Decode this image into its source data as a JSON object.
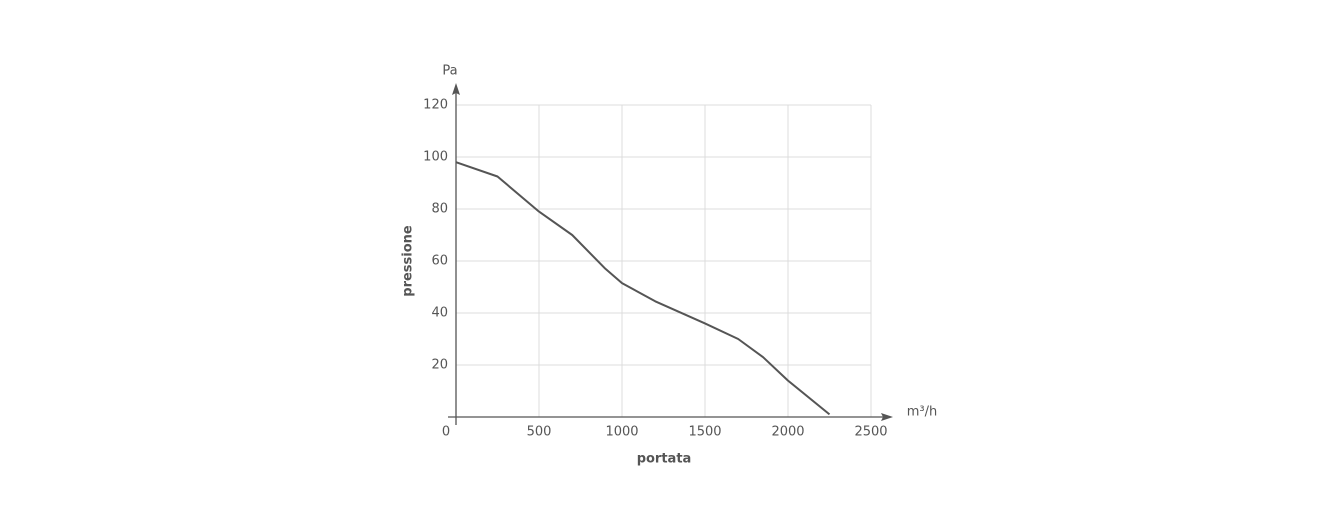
{
  "chart_data": {
    "type": "line",
    "x_label": "portata",
    "y_label": "pressione",
    "x_unit": "m³/h",
    "y_unit": "Pa",
    "x": [
      0,
      250,
      500,
      700,
      900,
      1000,
      1200,
      1500,
      1700,
      1850,
      2000,
      2250
    ],
    "values": [
      98,
      92.5,
      79,
      70,
      57,
      51.5,
      44.5,
      36,
      30,
      23,
      14,
      1
    ],
    "color": "#555555",
    "xlim": [
      0,
      2500
    ],
    "xticks": [
      0,
      500,
      1000,
      1500,
      2000,
      2500
    ],
    "ylim": [
      0,
      120
    ],
    "yticks": [
      20,
      40,
      60,
      80,
      100,
      120
    ],
    "grid": true
  }
}
